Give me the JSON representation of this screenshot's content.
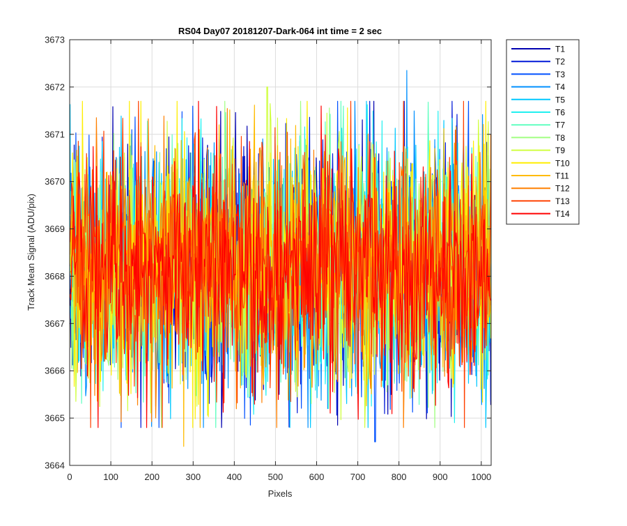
{
  "chart_data": {
    "type": "line",
    "title": "RS04 Day07 20181207-Dark-064 int time = 2 sec",
    "xlabel": "Pixels",
    "ylabel": "Track Mean Signal (ADU/pix)",
    "xlim": [
      0,
      1024
    ],
    "ylim": [
      3664,
      3673
    ],
    "xticks": [
      0,
      100,
      200,
      300,
      400,
      500,
      600,
      700,
      800,
      900,
      1000
    ],
    "yticks": [
      3664,
      3665,
      3666,
      3667,
      3668,
      3669,
      3670,
      3671,
      3672,
      3673
    ],
    "grid": true,
    "legend_position": "outside-top-right",
    "series_mean_approx": 3668.2,
    "series_spread_approx": 1.3,
    "notable_extrema": [
      {
        "series": "T4",
        "x": 819,
        "y": 3672.35
      },
      {
        "series": "T11",
        "x": 277,
        "y": 3664.4
      },
      {
        "series": "T9",
        "x": 480,
        "y": 3672.0
      },
      {
        "series": "T3",
        "x": 742,
        "y": 3664.5
      }
    ],
    "series": [
      {
        "name": "T1",
        "color": "#0000b0"
      },
      {
        "name": "T2",
        "color": "#0019d8"
      },
      {
        "name": "T3",
        "color": "#0050ff"
      },
      {
        "name": "T4",
        "color": "#0090ff"
      },
      {
        "name": "T5",
        "color": "#00c8ff"
      },
      {
        "name": "T6",
        "color": "#20f0f0"
      },
      {
        "name": "T7",
        "color": "#60ffc0"
      },
      {
        "name": "T8",
        "color": "#a0ff80"
      },
      {
        "name": "T9",
        "color": "#d0ff40"
      },
      {
        "name": "T10",
        "color": "#ffee00"
      },
      {
        "name": "T11",
        "color": "#ffbb00"
      },
      {
        "name": "T12",
        "color": "#ff8000"
      },
      {
        "name": "T13",
        "color": "#ff4000"
      },
      {
        "name": "T14",
        "color": "#ff0000"
      }
    ]
  }
}
